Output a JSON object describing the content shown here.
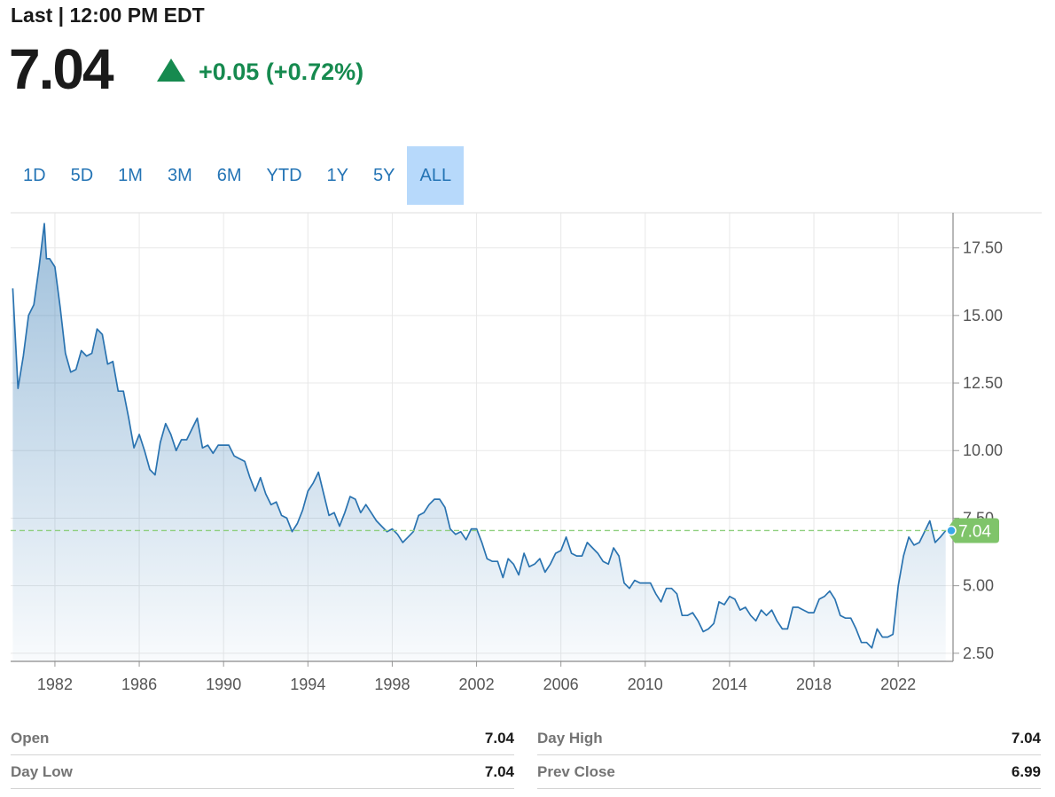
{
  "header": {
    "last_label": "Last | 12:00 PM EDT",
    "price": "7.04",
    "change": "+0.05 (+0.72%)"
  },
  "tabs": [
    "1D",
    "5D",
    "1M",
    "3M",
    "6M",
    "YTD",
    "1Y",
    "5Y",
    "ALL"
  ],
  "active_tab": "ALL",
  "colors": {
    "line": "#2a73b0",
    "up": "#168a4f",
    "tag": "#7fc46a",
    "tab_active": "#b7d9fb"
  },
  "chart_data": {
    "type": "area",
    "title": "",
    "xlabel": "",
    "ylabel": "",
    "x_ticks": [
      "1982",
      "1986",
      "1990",
      "1994",
      "1998",
      "2002",
      "2006",
      "2010",
      "2014",
      "2018",
      "2022"
    ],
    "y_ticks": [
      "2.50",
      "5.00",
      "7.50",
      "10.00",
      "12.50",
      "15.00",
      "17.50"
    ],
    "ylim": [
      2.2,
      18.8
    ],
    "xlim": [
      1979.9,
      2024.6
    ],
    "grid": true,
    "last_value_label": "7.04",
    "last_value": 7.04,
    "series": [
      {
        "x": [
          1980.0,
          1980.25,
          1980.5,
          1980.75,
          1981.0,
          1981.25,
          1981.5,
          1981.6,
          1981.75,
          1982.0,
          1982.25,
          1982.5,
          1982.75,
          1983.0,
          1983.25,
          1983.5,
          1983.75,
          1984.0,
          1984.25,
          1984.5,
          1984.75,
          1985.0,
          1985.25,
          1985.5,
          1985.75,
          1986.0,
          1986.25,
          1986.5,
          1986.75,
          1987.0,
          1987.25,
          1987.5,
          1987.75,
          1988.0,
          1988.25,
          1988.5,
          1988.75,
          1989.0,
          1989.25,
          1989.5,
          1989.75,
          1990.0,
          1990.25,
          1990.5,
          1990.75,
          1991.0,
          1991.25,
          1991.5,
          1991.75,
          1992.0,
          1992.25,
          1992.5,
          1992.75,
          1993.0,
          1993.25,
          1993.5,
          1993.75,
          1994.0,
          1994.25,
          1994.5,
          1994.75,
          1995.0,
          1995.25,
          1995.5,
          1995.75,
          1996.0,
          1996.25,
          1996.5,
          1996.75,
          1997.0,
          1997.25,
          1997.5,
          1997.75,
          1998.0,
          1998.25,
          1998.5,
          1998.75,
          1999.0,
          1999.25,
          1999.5,
          1999.75,
          2000.0,
          2000.25,
          2000.5,
          2000.75,
          2001.0,
          2001.25,
          2001.5,
          2001.75,
          2002.0,
          2002.25,
          2002.5,
          2002.75,
          2003.0,
          2003.25,
          2003.5,
          2003.75,
          2004.0,
          2004.25,
          2004.5,
          2004.75,
          2005.0,
          2005.25,
          2005.5,
          2005.75,
          2006.0,
          2006.25,
          2006.5,
          2006.75,
          2007.0,
          2007.25,
          2007.5,
          2007.75,
          2008.0,
          2008.25,
          2008.5,
          2008.75,
          2009.0,
          2009.25,
          2009.5,
          2009.75,
          2010.0,
          2010.25,
          2010.5,
          2010.75,
          2011.0,
          2011.25,
          2011.5,
          2011.75,
          2012.0,
          2012.25,
          2012.5,
          2012.75,
          2013.0,
          2013.25,
          2013.5,
          2013.75,
          2014.0,
          2014.25,
          2014.5,
          2014.75,
          2015.0,
          2015.25,
          2015.5,
          2015.75,
          2016.0,
          2016.25,
          2016.5,
          2016.75,
          2017.0,
          2017.25,
          2017.5,
          2017.75,
          2018.0,
          2018.25,
          2018.5,
          2018.75,
          2019.0,
          2019.25,
          2019.5,
          2019.75,
          2020.0,
          2020.25,
          2020.5,
          2020.75,
          2021.0,
          2021.25,
          2021.5,
          2021.75,
          2022.0,
          2022.25,
          2022.5,
          2022.75,
          2023.0,
          2023.25,
          2023.5,
          2023.75,
          2024.0,
          2024.25
        ],
        "y": [
          16.0,
          12.3,
          13.5,
          15.0,
          15.4,
          16.8,
          18.4,
          17.1,
          17.1,
          16.8,
          15.3,
          13.6,
          12.9,
          13.0,
          13.7,
          13.5,
          13.6,
          14.5,
          14.3,
          13.2,
          13.3,
          12.2,
          12.2,
          11.2,
          10.1,
          10.6,
          10.0,
          9.3,
          9.1,
          10.3,
          11.0,
          10.6,
          10.0,
          10.4,
          10.4,
          10.8,
          11.2,
          10.1,
          10.2,
          9.9,
          10.2,
          10.2,
          10.2,
          9.8,
          9.7,
          9.6,
          9.0,
          8.5,
          9.0,
          8.4,
          8.0,
          8.1,
          7.6,
          7.5,
          7.0,
          7.3,
          7.8,
          8.5,
          8.8,
          9.2,
          8.4,
          7.6,
          7.7,
          7.2,
          7.7,
          8.3,
          8.2,
          7.7,
          8.0,
          7.7,
          7.4,
          7.2,
          7.0,
          7.1,
          6.9,
          6.6,
          6.8,
          7.0,
          7.6,
          7.7,
          8.0,
          8.2,
          8.2,
          7.9,
          7.1,
          6.9,
          7.0,
          6.7,
          7.1,
          7.1,
          6.6,
          6.0,
          5.9,
          5.9,
          5.3,
          6.0,
          5.8,
          5.4,
          6.2,
          5.7,
          5.8,
          6.0,
          5.5,
          5.8,
          6.2,
          6.3,
          6.8,
          6.2,
          6.1,
          6.1,
          6.6,
          6.4,
          6.2,
          5.9,
          5.8,
          6.4,
          6.1,
          5.1,
          4.9,
          5.2,
          5.1,
          5.1,
          5.1,
          4.7,
          4.4,
          4.9,
          4.9,
          4.7,
          3.9,
          3.9,
          4.0,
          3.7,
          3.3,
          3.4,
          3.6,
          4.4,
          4.3,
          4.6,
          4.5,
          4.1,
          4.2,
          3.9,
          3.7,
          4.1,
          3.9,
          4.1,
          3.7,
          3.4,
          3.4,
          4.2,
          4.2,
          4.1,
          4.0,
          4.0,
          4.5,
          4.6,
          4.8,
          4.5,
          3.9,
          3.8,
          3.8,
          3.4,
          2.9,
          2.9,
          2.7,
          3.4,
          3.1,
          3.1,
          3.2,
          5.0,
          6.1,
          6.8,
          6.5,
          6.6,
          7.0,
          7.4,
          6.6,
          6.8,
          7.04
        ]
      }
    ]
  },
  "stats": [
    {
      "label": "Open",
      "value": "7.04"
    },
    {
      "label": "Day High",
      "value": "7.04"
    },
    {
      "label": "Day Low",
      "value": "7.04"
    },
    {
      "label": "Prev Close",
      "value": "6.99"
    }
  ]
}
